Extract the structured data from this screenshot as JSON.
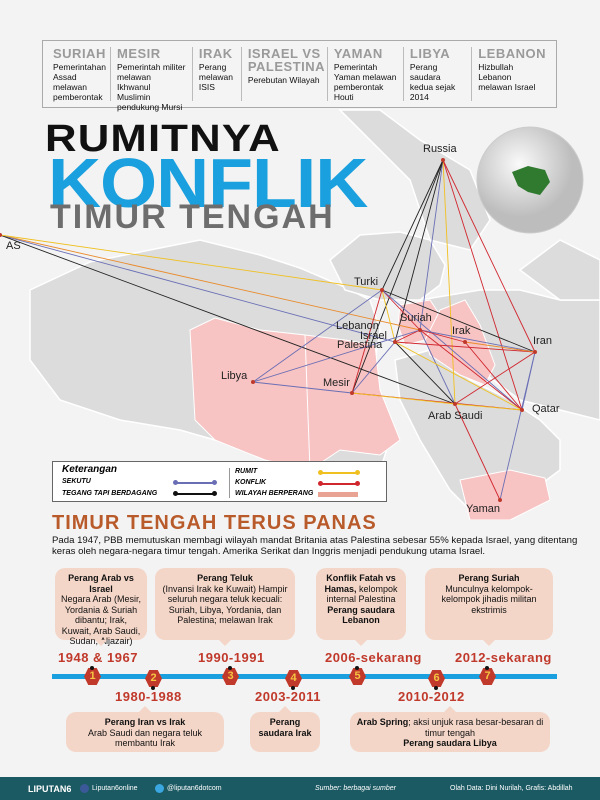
{
  "topbar": [
    {
      "country": "SURIAH",
      "text": "Pemerintahan Assad melawan pemberontak"
    },
    {
      "country": "MESIR",
      "text": "Pemerintah militer melawan Ikhwanul Muslimin pendukung Mursi"
    },
    {
      "country": "IRAK",
      "text": "Perang melawan ISIS"
    },
    {
      "country": "ISRAEL VS PALESTINA",
      "text": "Perebutan Wilayah"
    },
    {
      "country": "YAMAN",
      "text": "Pemerintah Yaman melawan pemberontak Houti"
    },
    {
      "country": "LIBYA",
      "text": "Perang saudara kedua sejak 2014"
    },
    {
      "country": "LEBANON",
      "text": "Hizbullah Lebanon melawan Israel"
    }
  ],
  "title": {
    "line1": "RUMITNYA",
    "line2": "KONFLIK",
    "line3": "TIMUR TENGAH"
  },
  "map": {
    "labels": {
      "russia": "Russia",
      "as": "AS",
      "turki": "Turki",
      "suriah": "Suriah",
      "lebanon": "Lebanon",
      "israel": "Israel",
      "palestina": "Palestina",
      "irak": "Irak",
      "iran": "Iran",
      "libya": "Libya",
      "mesir": "Mesir",
      "arab_saudi": "Arab Saudi",
      "qatar": "Qatar",
      "yaman": "Yaman"
    },
    "relations": [
      [
        "russia",
        "turki",
        "black"
      ],
      [
        "russia",
        "suriah",
        "blue"
      ],
      [
        "russia",
        "iran",
        "red"
      ],
      [
        "russia",
        "arab_saudi",
        "yellow"
      ],
      [
        "russia",
        "mesir",
        "black"
      ],
      [
        "russia",
        "qatar",
        "red"
      ],
      [
        "russia",
        "israel",
        "black"
      ],
      [
        "as",
        "suriah",
        "orange"
      ],
      [
        "as",
        "israel",
        "blue"
      ],
      [
        "as",
        "arab_saudi",
        "black"
      ],
      [
        "as",
        "turki",
        "yellow"
      ],
      [
        "turki",
        "suriah",
        "red"
      ],
      [
        "turki",
        "iran",
        "black"
      ],
      [
        "turki",
        "israel",
        "yellow"
      ],
      [
        "turki",
        "mesir",
        "red"
      ],
      [
        "turki",
        "libya",
        "blue"
      ],
      [
        "turki",
        "qatar",
        "blue"
      ],
      [
        "suriah",
        "iran",
        "blue"
      ],
      [
        "suriah",
        "arab_saudi",
        "blue"
      ],
      [
        "suriah",
        "qatar",
        "red"
      ],
      [
        "suriah",
        "israel",
        "red"
      ],
      [
        "suriah",
        "irak",
        "red"
      ],
      [
        "israel",
        "iran",
        "red"
      ],
      [
        "israel",
        "arab_saudi",
        "black"
      ],
      [
        "israel",
        "mesir",
        "blue"
      ],
      [
        "israel",
        "qatar",
        "yellow"
      ],
      [
        "iran",
        "arab_saudi",
        "red"
      ],
      [
        "iran",
        "qatar",
        "blue"
      ],
      [
        "iran",
        "irak",
        "orange"
      ],
      [
        "iran",
        "yaman",
        "blue"
      ],
      [
        "mesir",
        "libya",
        "blue"
      ],
      [
        "mesir",
        "qatar",
        "red"
      ],
      [
        "mesir",
        "arab_saudi",
        "yellow"
      ],
      [
        "libya",
        "suriah",
        "blue"
      ],
      [
        "arab_saudi",
        "qatar",
        "yellow"
      ],
      [
        "arab_saudi",
        "yaman",
        "red"
      ],
      [
        "irak",
        "qatar",
        "red"
      ]
    ],
    "war_zones": [
      "suriah",
      "irak",
      "libya",
      "mesir",
      "yaman"
    ],
    "colors": {
      "blue": "#6a6fb5",
      "black": "#222222",
      "yellow": "#f0c020",
      "red": "#d0262e",
      "orange": "#e98a2a",
      "war": "#f7c3c3",
      "globe_region": "#2f7a2f"
    }
  },
  "legend": {
    "title": "Keterangan",
    "sekutu": "SEKUTU",
    "tegang": "TEGANG TAPI BERDAGANG",
    "rumit": "RUMIT",
    "konflik": "KONFLIK",
    "wilayah": "WILAYAH BERPERANG"
  },
  "section": {
    "title": "TIMUR TENGAH TERUS PANAS",
    "intro": "Pada 1947, PBB memutuskan membagi wilayah mandat Britania atas Palestina sebesar 55% kepada Israel, yang ditentang keras oleh negara-negara timur tengah. Amerika Serikat dan Inggris menjadi pendukung utama Israel."
  },
  "timeline": [
    {
      "n": "1",
      "year": "1948 & 1967",
      "head": "Perang Arab vs Israel",
      "body": "Negara Arab (Mesir, Yordania & Suriah dibantu; Irak, Kuwait, Arab Saudi, Sudan, Aljazair)"
    },
    {
      "n": "2",
      "year": "1980-1988",
      "head": "Perang Iran vs Irak",
      "body": "Arab Saudi dan negara teluk membantu Irak"
    },
    {
      "n": "3",
      "year": "1990-1991",
      "head": "Perang Teluk",
      "body": "(Invansi Irak ke Kuwait) Hampir seluruh negara teluk kecuali: Suriah, Libya, Yordania, dan Palestina; melawan Irak"
    },
    {
      "n": "4",
      "year": "2003-2011",
      "head": "Perang saudara Irak",
      "body": ""
    },
    {
      "n": "5",
      "year": "2006-sekarang",
      "head": "Konflik Fatah vs Hamas,",
      "body": "kelompok internal Palestina",
      "tail": "Perang saudara Lebanon"
    },
    {
      "n": "6",
      "year": "2010-2012",
      "head": "Arab Spring",
      "body": "; aksi unjuk rasa besar-besaran di timur tengah",
      "tail": "Perang saudara Libya"
    },
    {
      "n": "7",
      "year": "2012-sekarang",
      "head": "Perang Suriah",
      "body": "Munculnya kelompok-kelompok jihadis militan ekstrimis"
    }
  ],
  "footer": {
    "brand": "LIPUTAN6",
    "facebook": "Liputan6online",
    "twitter": "@liputan6dotcom",
    "source": "Sumber: berbagai sumber",
    "credit": "Olah Data: Dini Nurilah, Grafis: Abdillah"
  }
}
